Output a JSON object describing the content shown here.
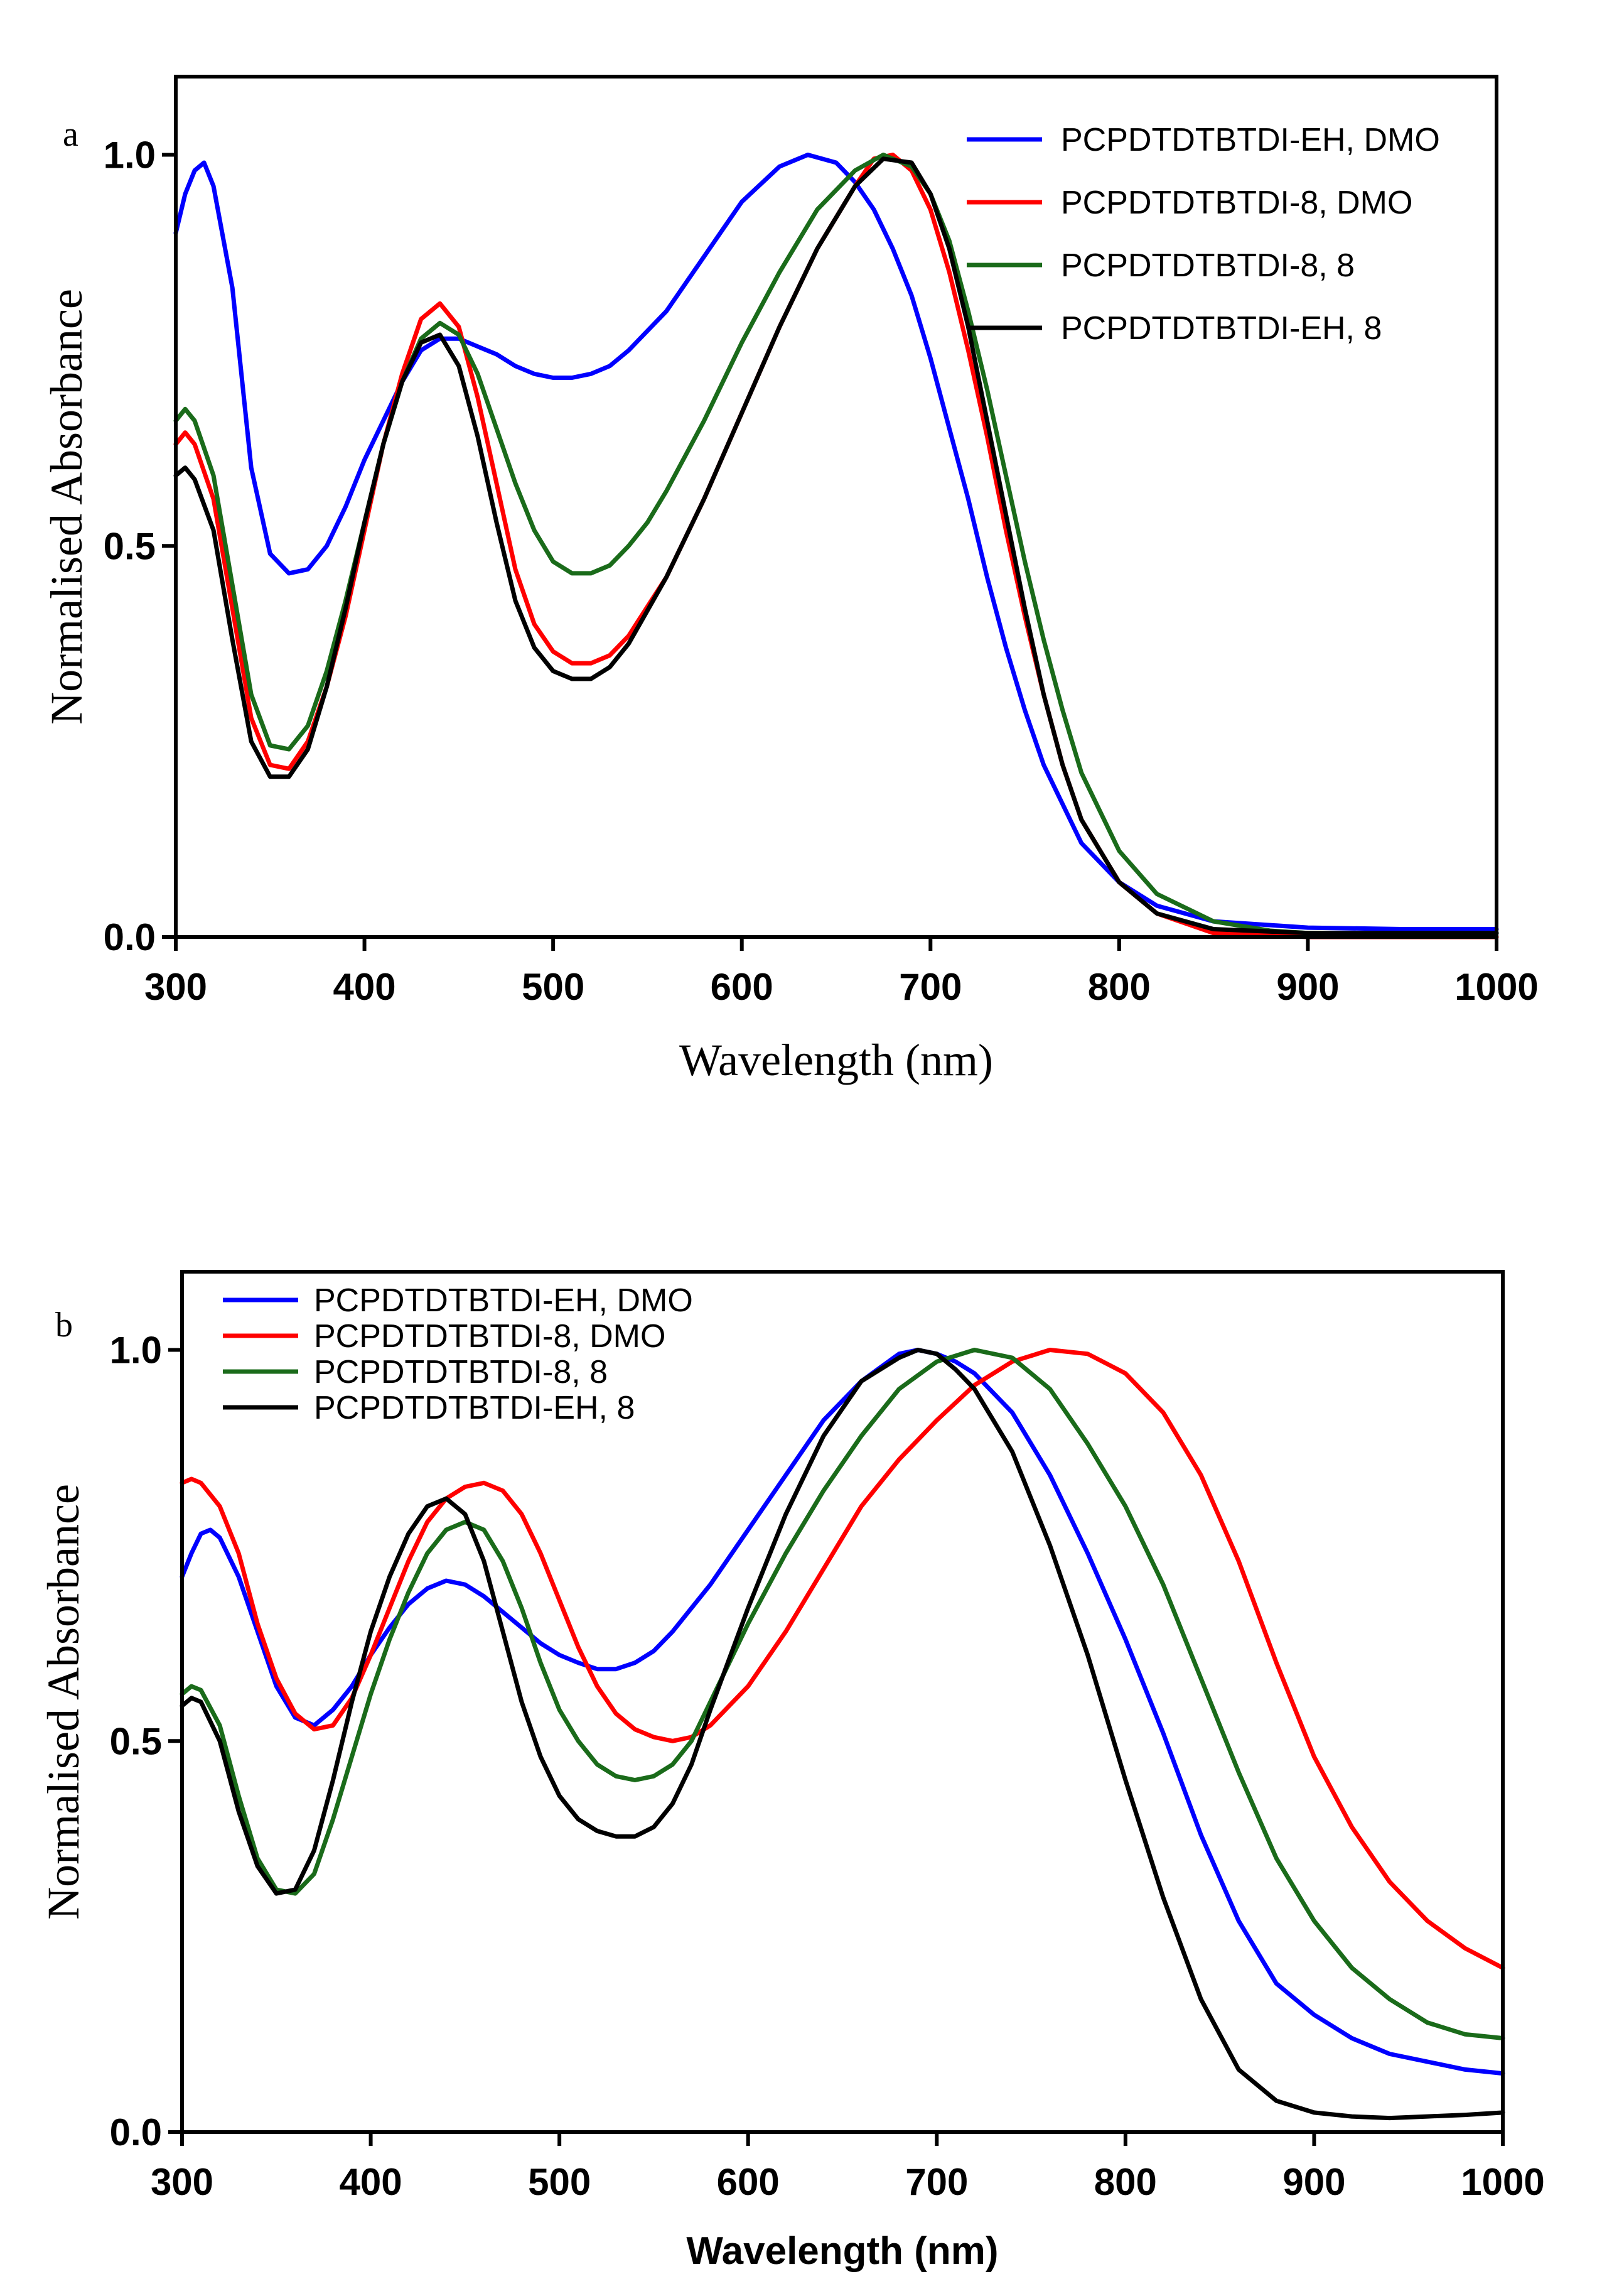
{
  "chart_data": [
    {
      "type": "line",
      "panel_label": "a",
      "xlabel": "Wavelength (nm)",
      "ylabel": "Normalised Absorbance",
      "xlim": [
        300,
        1000
      ],
      "ylim": [
        0,
        1.1
      ],
      "xticks": [
        "300",
        "400",
        "500",
        "600",
        "700",
        "800",
        "900",
        "1000"
      ],
      "yticks": [
        "0.0",
        "0.5",
        "1.0"
      ],
      "legend_position": "top-right",
      "series": [
        {
          "name": "PCPDTDTBTDI-EH, DMO",
          "color": "#0000ff",
          "x": [
            300,
            305,
            310,
            315,
            320,
            330,
            340,
            350,
            360,
            370,
            380,
            390,
            400,
            410,
            420,
            430,
            440,
            450,
            460,
            470,
            480,
            490,
            500,
            510,
            520,
            530,
            540,
            560,
            580,
            600,
            620,
            635,
            650,
            660,
            670,
            680,
            690,
            700,
            710,
            720,
            730,
            740,
            750,
            760,
            780,
            800,
            820,
            850,
            900,
            950,
            1000
          ],
          "y": [
            0.9,
            0.95,
            0.98,
            0.99,
            0.96,
            0.83,
            0.6,
            0.49,
            0.465,
            0.47,
            0.5,
            0.55,
            0.61,
            0.66,
            0.71,
            0.75,
            0.765,
            0.765,
            0.755,
            0.745,
            0.73,
            0.72,
            0.715,
            0.715,
            0.72,
            0.73,
            0.75,
            0.8,
            0.87,
            0.94,
            0.985,
            1.0,
            0.99,
            0.965,
            0.93,
            0.88,
            0.82,
            0.74,
            0.65,
            0.56,
            0.46,
            0.37,
            0.29,
            0.22,
            0.12,
            0.07,
            0.04,
            0.02,
            0.012,
            0.01,
            0.01
          ]
        },
        {
          "name": "PCPDTDTBTDI-8, DMO",
          "color": "#ff0000",
          "x": [
            300,
            305,
            310,
            320,
            330,
            340,
            350,
            360,
            370,
            380,
            390,
            400,
            410,
            420,
            430,
            440,
            450,
            460,
            470,
            480,
            490,
            500,
            510,
            520,
            530,
            540,
            560,
            580,
            600,
            620,
            640,
            660,
            670,
            680,
            690,
            700,
            710,
            720,
            730,
            740,
            750,
            760,
            770,
            780,
            800,
            820,
            850,
            900,
            1000
          ],
          "y": [
            0.63,
            0.645,
            0.63,
            0.56,
            0.42,
            0.28,
            0.22,
            0.215,
            0.25,
            0.32,
            0.41,
            0.52,
            0.63,
            0.72,
            0.79,
            0.81,
            0.78,
            0.69,
            0.58,
            0.47,
            0.4,
            0.365,
            0.35,
            0.35,
            0.36,
            0.385,
            0.46,
            0.56,
            0.67,
            0.78,
            0.88,
            0.96,
            0.995,
            1.0,
            0.98,
            0.93,
            0.85,
            0.75,
            0.64,
            0.52,
            0.41,
            0.31,
            0.22,
            0.15,
            0.07,
            0.03,
            0.005,
            0.0,
            0.0
          ]
        },
        {
          "name": "PCPDTDTBTDI-8, 8",
          "color": "#1a6b1a",
          "x": [
            300,
            305,
            310,
            320,
            330,
            340,
            350,
            360,
            370,
            380,
            390,
            400,
            410,
            420,
            430,
            440,
            450,
            460,
            470,
            480,
            490,
            500,
            510,
            520,
            530,
            540,
            550,
            560,
            580,
            600,
            620,
            640,
            660,
            675,
            690,
            700,
            710,
            720,
            730,
            740,
            750,
            760,
            770,
            780,
            800,
            820,
            850,
            880,
            900,
            1000
          ],
          "y": [
            0.66,
            0.675,
            0.66,
            0.59,
            0.45,
            0.31,
            0.245,
            0.24,
            0.27,
            0.34,
            0.43,
            0.53,
            0.63,
            0.71,
            0.765,
            0.785,
            0.77,
            0.72,
            0.65,
            0.58,
            0.52,
            0.48,
            0.465,
            0.465,
            0.475,
            0.5,
            0.53,
            0.57,
            0.66,
            0.76,
            0.85,
            0.93,
            0.98,
            1.0,
            0.985,
            0.95,
            0.89,
            0.8,
            0.7,
            0.59,
            0.48,
            0.38,
            0.29,
            0.21,
            0.11,
            0.055,
            0.02,
            0.008,
            0.005,
            0.005
          ]
        },
        {
          "name": "PCPDTDTBTDI-EH, 8",
          "color": "#000000",
          "x": [
            300,
            305,
            310,
            320,
            330,
            340,
            350,
            360,
            370,
            380,
            390,
            400,
            410,
            420,
            430,
            440,
            450,
            460,
            470,
            480,
            490,
            500,
            510,
            520,
            530,
            540,
            560,
            580,
            600,
            620,
            640,
            660,
            675,
            690,
            700,
            710,
            720,
            730,
            740,
            750,
            760,
            770,
            780,
            800,
            820,
            850,
            900,
            1000
          ],
          "y": [
            0.59,
            0.6,
            0.585,
            0.52,
            0.38,
            0.25,
            0.205,
            0.205,
            0.24,
            0.32,
            0.42,
            0.53,
            0.63,
            0.71,
            0.76,
            0.77,
            0.73,
            0.64,
            0.53,
            0.43,
            0.37,
            0.34,
            0.33,
            0.33,
            0.345,
            0.375,
            0.46,
            0.56,
            0.67,
            0.78,
            0.88,
            0.96,
            0.995,
            0.99,
            0.95,
            0.88,
            0.78,
            0.66,
            0.54,
            0.42,
            0.31,
            0.22,
            0.15,
            0.07,
            0.03,
            0.01,
            0.005,
            0.005
          ]
        }
      ]
    },
    {
      "type": "line",
      "panel_label": "b",
      "xlabel": "Wavelength (nm)",
      "ylabel": "Normalised Absorbance",
      "xlim": [
        300,
        1000
      ],
      "ylim": [
        0,
        1.1
      ],
      "xticks": [
        "300",
        "400",
        "500",
        "600",
        "700",
        "800",
        "900",
        "1000"
      ],
      "yticks": [
        "0.0",
        "0.5",
        "1.0"
      ],
      "legend_position": "top-left",
      "series": [
        {
          "name": "PCPDTDTBTDI-EH, DMO",
          "color": "#0000ff",
          "x": [
            300,
            305,
            310,
            315,
            320,
            330,
            340,
            350,
            360,
            370,
            380,
            390,
            400,
            410,
            420,
            430,
            440,
            450,
            460,
            470,
            480,
            490,
            500,
            510,
            520,
            530,
            540,
            550,
            560,
            580,
            600,
            620,
            640,
            660,
            680,
            690,
            700,
            710,
            720,
            740,
            760,
            780,
            800,
            820,
            840,
            860,
            880,
            900,
            920,
            940,
            960,
            980,
            1000
          ],
          "y": [
            0.71,
            0.74,
            0.765,
            0.77,
            0.76,
            0.71,
            0.64,
            0.57,
            0.53,
            0.52,
            0.54,
            0.57,
            0.61,
            0.645,
            0.675,
            0.695,
            0.705,
            0.7,
            0.685,
            0.665,
            0.645,
            0.625,
            0.61,
            0.6,
            0.592,
            0.592,
            0.6,
            0.615,
            0.64,
            0.7,
            0.77,
            0.84,
            0.91,
            0.96,
            0.995,
            1.0,
            0.995,
            0.985,
            0.97,
            0.92,
            0.84,
            0.74,
            0.63,
            0.51,
            0.38,
            0.27,
            0.19,
            0.15,
            0.12,
            0.1,
            0.09,
            0.08,
            0.075
          ]
        },
        {
          "name": "PCPDTDTBTDI-8, DMO",
          "color": "#ff0000",
          "x": [
            300,
            305,
            310,
            320,
            330,
            340,
            350,
            360,
            370,
            380,
            390,
            400,
            410,
            420,
            430,
            440,
            450,
            460,
            470,
            480,
            490,
            500,
            510,
            520,
            530,
            540,
            550,
            560,
            570,
            580,
            600,
            620,
            640,
            660,
            680,
            700,
            720,
            740,
            760,
            780,
            800,
            820,
            840,
            860,
            880,
            900,
            920,
            940,
            960,
            980,
            1000
          ],
          "y": [
            0.83,
            0.835,
            0.83,
            0.8,
            0.74,
            0.65,
            0.58,
            0.535,
            0.515,
            0.52,
            0.555,
            0.61,
            0.67,
            0.73,
            0.78,
            0.81,
            0.825,
            0.83,
            0.82,
            0.79,
            0.74,
            0.68,
            0.62,
            0.57,
            0.535,
            0.515,
            0.505,
            0.5,
            0.505,
            0.52,
            0.57,
            0.64,
            0.72,
            0.8,
            0.86,
            0.91,
            0.955,
            0.985,
            1.0,
            0.995,
            0.97,
            0.92,
            0.84,
            0.73,
            0.6,
            0.48,
            0.39,
            0.32,
            0.27,
            0.235,
            0.21
          ]
        },
        {
          "name": "PCPDTDTBTDI-8, 8",
          "color": "#1a6b1a",
          "x": [
            300,
            305,
            310,
            320,
            330,
            340,
            350,
            360,
            370,
            380,
            390,
            400,
            410,
            420,
            430,
            440,
            450,
            460,
            470,
            480,
            490,
            500,
            510,
            520,
            530,
            540,
            550,
            560,
            570,
            580,
            600,
            620,
            640,
            660,
            680,
            700,
            720,
            740,
            760,
            780,
            800,
            820,
            840,
            860,
            880,
            900,
            920,
            940,
            960,
            980,
            1000
          ],
          "y": [
            0.56,
            0.57,
            0.565,
            0.52,
            0.43,
            0.35,
            0.31,
            0.305,
            0.33,
            0.4,
            0.48,
            0.56,
            0.63,
            0.69,
            0.74,
            0.77,
            0.78,
            0.77,
            0.73,
            0.67,
            0.6,
            0.54,
            0.5,
            0.47,
            0.455,
            0.45,
            0.455,
            0.47,
            0.5,
            0.55,
            0.65,
            0.74,
            0.82,
            0.89,
            0.95,
            0.985,
            1.0,
            0.99,
            0.95,
            0.88,
            0.8,
            0.7,
            0.58,
            0.46,
            0.35,
            0.27,
            0.21,
            0.17,
            0.14,
            0.125,
            0.12
          ]
        },
        {
          "name": "PCPDTDTBTDI-EH, 8",
          "color": "#000000",
          "x": [
            300,
            305,
            310,
            320,
            330,
            340,
            350,
            360,
            370,
            380,
            390,
            400,
            410,
            420,
            430,
            440,
            450,
            460,
            470,
            480,
            490,
            500,
            510,
            520,
            530,
            540,
            550,
            560,
            570,
            580,
            600,
            620,
            640,
            660,
            680,
            690,
            700,
            710,
            720,
            740,
            760,
            780,
            800,
            820,
            840,
            860,
            880,
            900,
            920,
            940,
            960,
            980,
            1000
          ],
          "y": [
            0.545,
            0.555,
            0.55,
            0.5,
            0.41,
            0.34,
            0.305,
            0.31,
            0.36,
            0.45,
            0.55,
            0.64,
            0.71,
            0.765,
            0.8,
            0.81,
            0.79,
            0.73,
            0.64,
            0.55,
            0.48,
            0.43,
            0.4,
            0.385,
            0.378,
            0.378,
            0.39,
            0.42,
            0.47,
            0.54,
            0.67,
            0.79,
            0.89,
            0.96,
            0.99,
            1.0,
            0.995,
            0.975,
            0.95,
            0.87,
            0.75,
            0.61,
            0.45,
            0.3,
            0.17,
            0.08,
            0.04,
            0.025,
            0.02,
            0.018,
            0.02,
            0.022,
            0.025
          ]
        }
      ]
    }
  ]
}
